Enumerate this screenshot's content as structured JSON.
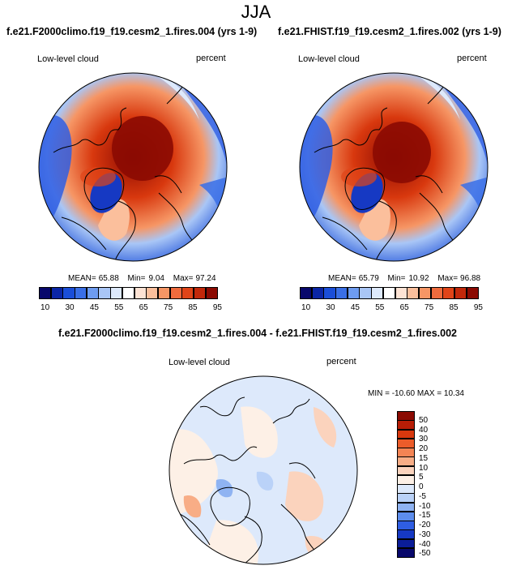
{
  "page_title": "JJA",
  "panels": [
    {
      "case_title": "f.e21.F2000climo.f19_f19.cesm2_1.fires.004 (yrs 1-9)",
      "variable": "Low-level cloud",
      "units": "percent",
      "stats": {
        "mean_label": "MEAN=",
        "mean": "65.88",
        "min_label": "Min=",
        "min": "9.04",
        "max_label": "Max=",
        "max": "97.24"
      }
    },
    {
      "case_title": "f.e21.FHIST.f19_f19.cesm2_1.fires.002 (yrs 1-9)",
      "variable": "Low-level cloud",
      "units": "percent",
      "stats": {
        "mean_label": "MEAN=",
        "mean": "65.79",
        "min_label": "Min=",
        "min": "10.92",
        "max_label": "Max=",
        "max": "96.88"
      }
    }
  ],
  "abs_colorbar": {
    "colors": [
      "#08086b",
      "#0b26a6",
      "#1a4ed8",
      "#3a6fe6",
      "#6e9cf0",
      "#a9c6f6",
      "#dde9fb",
      "#ffffff",
      "#fde3d4",
      "#fbbf9c",
      "#f69665",
      "#ef6b3d",
      "#e04418",
      "#c2280a",
      "#8b0a02"
    ],
    "tick_labels": [
      "10",
      "30",
      "45",
      "55",
      "65",
      "75",
      "85",
      "95"
    ]
  },
  "difference": {
    "title": "f.e21.F2000climo.f19_f19.cesm2_1.fires.004 - f.e21.FHIST.f19_f19.cesm2_1.fires.002",
    "variable": "Low-level cloud",
    "units": "percent",
    "range_text": "MIN = -10.60 MAX =  10.34",
    "colorbar": {
      "colors": [
        "#8b0a02",
        "#b71d06",
        "#d8380e",
        "#ec5c2a",
        "#f48454",
        "#f8ad86",
        "#fbd3bd",
        "#fdf0e6",
        "#dde9fb",
        "#bad2f8",
        "#8fb3f2",
        "#5d8ded",
        "#2f5ee3",
        "#1639c3",
        "#0b1d98",
        "#08086b"
      ],
      "tick_labels": [
        "50",
        "40",
        "30",
        "20",
        "15",
        "10",
        "5",
        "0",
        "-5",
        "-10",
        "-15",
        "-20",
        "-30",
        "-40",
        "-50"
      ]
    }
  },
  "colors": {
    "land_outline": "#000000",
    "background": "#ffffff"
  }
}
